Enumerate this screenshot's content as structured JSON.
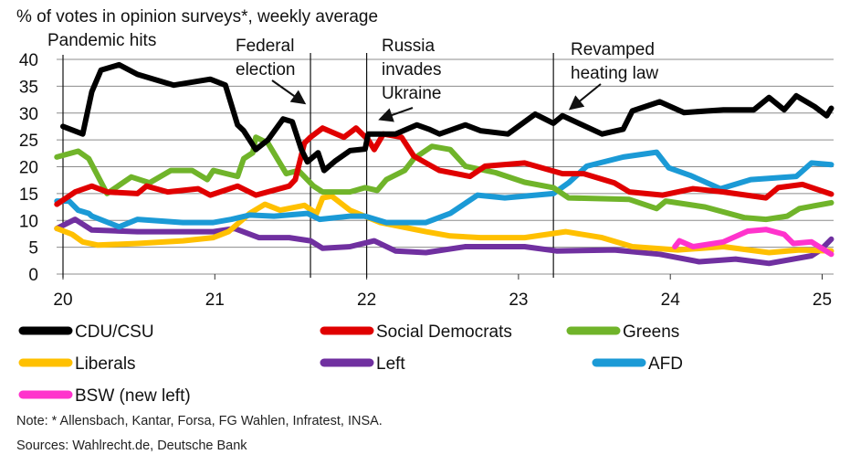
{
  "chart_data": {
    "type": "line",
    "title": "% of votes in opinion surveys*, weekly average",
    "xlabel": "",
    "ylabel": "",
    "xlim": [
      20,
      25.08
    ],
    "ylim": [
      0,
      40
    ],
    "x_ticks": [
      20,
      21,
      22,
      23,
      24,
      25
    ],
    "x_tick_labels": [
      "20",
      "21",
      "22",
      "23",
      "24",
      "25"
    ],
    "y_ticks": [
      0,
      5,
      10,
      15,
      20,
      25,
      30,
      35,
      40
    ],
    "y_tick_labels": [
      "0",
      "5",
      "10",
      "15",
      "20",
      "25",
      "30",
      "35",
      "40"
    ],
    "grid": "horizontal",
    "legend_position": "bottom",
    "annotations": [
      {
        "lines": [
          "Pandemic hits"
        ],
        "x": null
      },
      {
        "lines": [
          "Federal",
          "election"
        ],
        "x": 21.63
      },
      {
        "lines": [
          "Russia",
          "invades",
          "Ukraine"
        ],
        "x": 22.0
      },
      {
        "lines": [
          "Revamped",
          "heating law"
        ],
        "x": 23.23
      }
    ],
    "series": [
      {
        "name": "Left",
        "color": "#7030a0",
        "x": [
          19.96,
          20.08,
          20.19,
          20.49,
          20.99,
          21.13,
          21.29,
          21.49,
          21.63,
          21.71,
          21.89,
          22.05,
          22.19,
          22.39,
          22.65,
          23.04,
          23.25,
          23.63,
          23.93,
          24.19,
          24.43,
          24.65,
          24.93,
          24.99,
          25.06
        ],
        "y": [
          8.5,
          10.2,
          8.2,
          7.9,
          7.9,
          8.5,
          6.8,
          6.8,
          6.2,
          4.8,
          5.1,
          6.2,
          4.3,
          4.0,
          5.1,
          5.1,
          4.3,
          4.5,
          3.7,
          2.3,
          2.8,
          2.0,
          3.4,
          4.5,
          6.5
        ]
      },
      {
        "name": "Liberals",
        "color": "#ffc000",
        "x": [
          19.96,
          20.06,
          20.13,
          20.23,
          20.49,
          20.79,
          20.99,
          21.09,
          21.23,
          21.33,
          21.43,
          21.59,
          21.67,
          21.71,
          21.77,
          21.89,
          22.09,
          22.39,
          22.55,
          22.75,
          23.04,
          23.31,
          23.55,
          23.75,
          24.05,
          24.35,
          24.65,
          24.85,
          25.06
        ],
        "y": [
          8.5,
          7.4,
          6.0,
          5.4,
          5.7,
          6.2,
          6.8,
          7.9,
          11.3,
          13.0,
          11.9,
          12.8,
          11.3,
          14.2,
          14.5,
          11.9,
          9.6,
          7.9,
          7.1,
          6.8,
          6.8,
          7.9,
          6.8,
          5.1,
          4.5,
          5.1,
          4.0,
          4.5,
          4.3
        ]
      },
      {
        "name": "AFD",
        "color": "#1b9ad6",
        "x": [
          19.96,
          20.04,
          20.1,
          20.17,
          20.19,
          20.37,
          20.49,
          20.79,
          20.99,
          21.11,
          21.23,
          21.39,
          21.61,
          21.69,
          21.89,
          21.99,
          22.13,
          22.39,
          22.55,
          22.73,
          22.91,
          23.23,
          23.33,
          23.45,
          23.69,
          23.91,
          23.99,
          24.13,
          24.33,
          24.53,
          24.83,
          24.93,
          25.06
        ],
        "y": [
          13.6,
          13.6,
          11.9,
          11.3,
          10.8,
          8.8,
          10.2,
          9.6,
          9.6,
          10.2,
          11.0,
          10.8,
          11.3,
          10.2,
          10.8,
          10.8,
          9.6,
          9.6,
          11.3,
          14.7,
          14.2,
          15.0,
          17.0,
          20.1,
          21.8,
          22.7,
          19.8,
          18.4,
          15.9,
          17.6,
          18.2,
          20.7,
          20.4
        ]
      },
      {
        "name": "Greens",
        "color": "#70b42a",
        "x": [
          19.96,
          20.1,
          20.17,
          20.29,
          20.45,
          20.57,
          20.71,
          20.85,
          20.95,
          20.99,
          21.15,
          21.19,
          21.25,
          21.27,
          21.35,
          21.47,
          21.55,
          21.65,
          21.71,
          21.89,
          21.99,
          22.07,
          22.13,
          22.25,
          22.31,
          22.43,
          22.55,
          22.65,
          22.85,
          23.04,
          23.23,
          23.33,
          23.73,
          23.91,
          23.97,
          24.23,
          24.49,
          24.63,
          24.77,
          24.85,
          25.06
        ],
        "y": [
          21.8,
          22.9,
          21.5,
          15.0,
          18.1,
          17.0,
          19.3,
          19.3,
          17.6,
          19.3,
          18.2,
          21.5,
          22.6,
          25.5,
          24.4,
          18.7,
          19.3,
          16.4,
          15.3,
          15.3,
          16.1,
          15.6,
          17.6,
          19.3,
          21.5,
          23.8,
          23.2,
          20.1,
          18.9,
          17.1,
          16.1,
          14.2,
          13.9,
          12.2,
          13.6,
          12.5,
          10.5,
          10.2,
          10.8,
          12.2,
          13.3
        ]
      },
      {
        "name": "Social Democrats",
        "color": "#e00000",
        "x": [
          19.96,
          20.08,
          20.19,
          20.29,
          20.49,
          20.55,
          20.69,
          20.89,
          20.97,
          21.15,
          21.27,
          21.49,
          21.53,
          21.59,
          21.63,
          21.71,
          21.85,
          21.93,
          22.01,
          22.05,
          22.11,
          22.23,
          22.31,
          22.41,
          22.48,
          22.68,
          22.78,
          23.04,
          23.29,
          23.43,
          23.63,
          23.73,
          23.95,
          24.15,
          24.35,
          24.63,
          24.71,
          24.87,
          25.06
        ],
        "y": [
          13.0,
          15.3,
          16.4,
          15.3,
          15.0,
          16.4,
          15.3,
          15.9,
          14.7,
          16.4,
          14.7,
          16.4,
          17.6,
          24.4,
          25.5,
          27.2,
          25.5,
          27.2,
          25.0,
          23.2,
          26.1,
          25.5,
          22.0,
          20.4,
          19.3,
          18.2,
          20.1,
          20.7,
          18.7,
          18.7,
          17.0,
          15.3,
          14.7,
          15.9,
          15.3,
          14.2,
          16.1,
          16.7,
          14.9
        ]
      },
      {
        "name": "CDU/CSU",
        "color": "#000000",
        "x": [
          20.0,
          20.13,
          20.19,
          20.25,
          20.37,
          20.49,
          20.73,
          20.97,
          21.07,
          21.15,
          21.19,
          21.27,
          21.35,
          21.45,
          21.51,
          21.57,
          21.61,
          21.68,
          21.72,
          21.79,
          21.89,
          21.99,
          22.01,
          22.19,
          22.33,
          22.41,
          22.48,
          22.65,
          22.75,
          22.93,
          23.11,
          23.23,
          23.29,
          23.55,
          23.69,
          23.75,
          23.93,
          24.09,
          24.35,
          24.55,
          24.65,
          24.75,
          24.83,
          24.95,
          25.03,
          25.06
        ],
        "y": [
          27.5,
          26.1,
          34.0,
          38.0,
          39.0,
          37.2,
          35.2,
          36.3,
          35.2,
          27.8,
          26.7,
          23.2,
          25.0,
          28.9,
          28.4,
          23.2,
          20.9,
          22.6,
          19.3,
          21.0,
          23.0,
          23.3,
          26.1,
          26.1,
          27.8,
          27.0,
          26.1,
          27.8,
          26.7,
          26.1,
          29.8,
          28.1,
          29.5,
          26.1,
          27.0,
          30.4,
          32.1,
          30.1,
          30.6,
          30.6,
          32.9,
          30.6,
          33.2,
          31.2,
          29.5,
          30.9
        ]
      },
      {
        "name": "BSW (new left)",
        "color": "#ff33cc",
        "x": [
          24.03,
          24.06,
          24.15,
          24.35,
          24.51,
          24.63,
          24.75,
          24.81,
          24.93,
          25.06
        ],
        "y": [
          5.1,
          6.2,
          5.1,
          6.0,
          8.0,
          8.3,
          7.4,
          5.7,
          6.0,
          3.7
        ]
      }
    ],
    "legend_order": [
      "CDU/CSU",
      "Social Democrats",
      "Greens",
      "Liberals",
      "Left",
      "AFD",
      "BSW (new left)"
    ],
    "note": "Note: * Allensbach, Kantar, Forsa, FG Wahlen, Infratest, INSA.",
    "sources": "Sources: Wahlrecht.de, Deutsche Bank"
  }
}
